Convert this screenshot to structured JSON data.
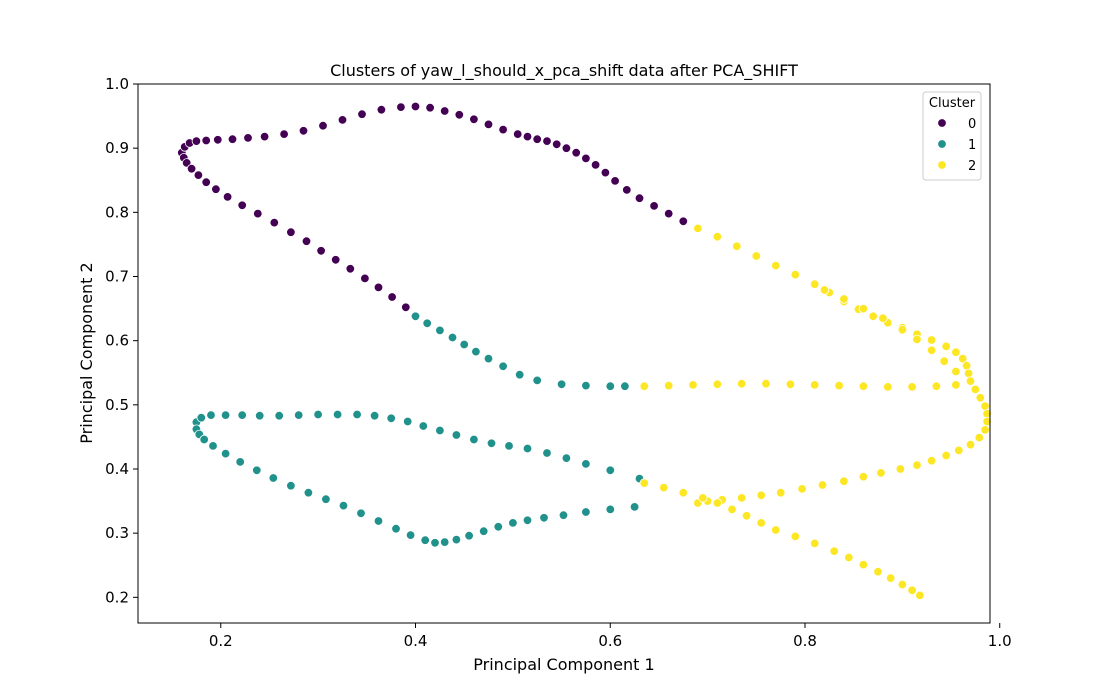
{
  "chart_data": {
    "type": "scatter",
    "title": "Clusters of yaw_l_should_x_pca_shift data after PCA_SHIFT",
    "xlabel": "Principal Component 1",
    "ylabel": "Principal Component 2",
    "xlim": [
      0.115,
      0.99
    ],
    "ylim": [
      0.16,
      1.0
    ],
    "xticks": [
      "0.2",
      "0.4",
      "0.6",
      "0.8",
      "1.0"
    ],
    "yticks": [
      "0.2",
      "0.3",
      "0.4",
      "0.5",
      "0.6",
      "0.7",
      "0.8",
      "0.9",
      "1.0"
    ],
    "grid": false,
    "legend": {
      "title": "Cluster",
      "placement": "top-right"
    },
    "series": [
      {
        "name": "0",
        "color": "#440154",
        "points": [
          [
            0.16,
            0.893
          ],
          [
            0.163,
            0.902
          ],
          [
            0.168,
            0.908
          ],
          [
            0.175,
            0.911
          ],
          [
            0.185,
            0.912
          ],
          [
            0.197,
            0.913
          ],
          [
            0.212,
            0.914
          ],
          [
            0.228,
            0.916
          ],
          [
            0.245,
            0.918
          ],
          [
            0.265,
            0.922
          ],
          [
            0.285,
            0.927
          ],
          [
            0.305,
            0.935
          ],
          [
            0.325,
            0.944
          ],
          [
            0.345,
            0.953
          ],
          [
            0.365,
            0.96
          ],
          [
            0.385,
            0.964
          ],
          [
            0.4,
            0.965
          ],
          [
            0.415,
            0.963
          ],
          [
            0.43,
            0.958
          ],
          [
            0.445,
            0.952
          ],
          [
            0.46,
            0.945
          ],
          [
            0.475,
            0.937
          ],
          [
            0.49,
            0.929
          ],
          [
            0.505,
            0.922
          ],
          [
            0.515,
            0.918
          ],
          [
            0.525,
            0.914
          ],
          [
            0.535,
            0.911
          ],
          [
            0.545,
            0.906
          ],
          [
            0.555,
            0.9
          ],
          [
            0.565,
            0.893
          ],
          [
            0.575,
            0.884
          ],
          [
            0.585,
            0.874
          ],
          [
            0.595,
            0.862
          ],
          [
            0.605,
            0.849
          ],
          [
            0.617,
            0.835
          ],
          [
            0.63,
            0.822
          ],
          [
            0.645,
            0.81
          ],
          [
            0.66,
            0.798
          ],
          [
            0.675,
            0.786
          ],
          [
            0.162,
            0.885
          ],
          [
            0.165,
            0.877
          ],
          [
            0.17,
            0.868
          ],
          [
            0.177,
            0.858
          ],
          [
            0.185,
            0.847
          ],
          [
            0.195,
            0.836
          ],
          [
            0.207,
            0.824
          ],
          [
            0.222,
            0.811
          ],
          [
            0.238,
            0.798
          ],
          [
            0.255,
            0.784
          ],
          [
            0.272,
            0.769
          ],
          [
            0.288,
            0.755
          ],
          [
            0.303,
            0.74
          ],
          [
            0.318,
            0.726
          ],
          [
            0.333,
            0.712
          ],
          [
            0.348,
            0.697
          ],
          [
            0.362,
            0.683
          ],
          [
            0.376,
            0.668
          ],
          [
            0.39,
            0.652
          ]
        ]
      },
      {
        "name": "1",
        "color": "#21918c",
        "points": [
          [
            0.4,
            0.638
          ],
          [
            0.412,
            0.627
          ],
          [
            0.425,
            0.616
          ],
          [
            0.438,
            0.605
          ],
          [
            0.45,
            0.594
          ],
          [
            0.462,
            0.583
          ],
          [
            0.475,
            0.572
          ],
          [
            0.49,
            0.56
          ],
          [
            0.507,
            0.547
          ],
          [
            0.525,
            0.538
          ],
          [
            0.55,
            0.532
          ],
          [
            0.575,
            0.53
          ],
          [
            0.6,
            0.529
          ],
          [
            0.615,
            0.529
          ],
          [
            0.175,
            0.473
          ],
          [
            0.18,
            0.48
          ],
          [
            0.19,
            0.484
          ],
          [
            0.205,
            0.484
          ],
          [
            0.222,
            0.484
          ],
          [
            0.24,
            0.483
          ],
          [
            0.26,
            0.483
          ],
          [
            0.28,
            0.484
          ],
          [
            0.3,
            0.485
          ],
          [
            0.32,
            0.485
          ],
          [
            0.34,
            0.485
          ],
          [
            0.358,
            0.483
          ],
          [
            0.375,
            0.479
          ],
          [
            0.392,
            0.474
          ],
          [
            0.408,
            0.467
          ],
          [
            0.425,
            0.46
          ],
          [
            0.442,
            0.453
          ],
          [
            0.46,
            0.446
          ],
          [
            0.478,
            0.44
          ],
          [
            0.496,
            0.436
          ],
          [
            0.515,
            0.432
          ],
          [
            0.535,
            0.425
          ],
          [
            0.555,
            0.417
          ],
          [
            0.575,
            0.408
          ],
          [
            0.6,
            0.398
          ],
          [
            0.63,
            0.385
          ],
          [
            0.175,
            0.462
          ],
          [
            0.178,
            0.454
          ],
          [
            0.183,
            0.446
          ],
          [
            0.192,
            0.436
          ],
          [
            0.205,
            0.424
          ],
          [
            0.22,
            0.411
          ],
          [
            0.237,
            0.398
          ],
          [
            0.254,
            0.386
          ],
          [
            0.272,
            0.374
          ],
          [
            0.29,
            0.363
          ],
          [
            0.308,
            0.353
          ],
          [
            0.326,
            0.343
          ],
          [
            0.344,
            0.331
          ],
          [
            0.362,
            0.319
          ],
          [
            0.38,
            0.307
          ],
          [
            0.395,
            0.297
          ],
          [
            0.41,
            0.289
          ],
          [
            0.42,
            0.285
          ],
          [
            0.43,
            0.286
          ],
          [
            0.442,
            0.29
          ],
          [
            0.455,
            0.296
          ],
          [
            0.47,
            0.303
          ],
          [
            0.485,
            0.31
          ],
          [
            0.5,
            0.316
          ],
          [
            0.515,
            0.32
          ],
          [
            0.532,
            0.324
          ],
          [
            0.552,
            0.328
          ],
          [
            0.575,
            0.333
          ],
          [
            0.6,
            0.337
          ],
          [
            0.625,
            0.341
          ]
        ]
      },
      {
        "name": "2",
        "color": "#fde725",
        "points": [
          [
            0.69,
            0.775
          ],
          [
            0.71,
            0.762
          ],
          [
            0.73,
            0.747
          ],
          [
            0.75,
            0.732
          ],
          [
            0.77,
            0.717
          ],
          [
            0.79,
            0.703
          ],
          [
            0.81,
            0.688
          ],
          [
            0.825,
            0.675
          ],
          [
            0.84,
            0.661
          ],
          [
            0.855,
            0.649
          ],
          [
            0.87,
            0.638
          ],
          [
            0.885,
            0.628
          ],
          [
            0.9,
            0.62
          ],
          [
            0.915,
            0.61
          ],
          [
            0.93,
            0.601
          ],
          [
            0.945,
            0.591
          ],
          [
            0.955,
            0.582
          ],
          [
            0.962,
            0.572
          ],
          [
            0.966,
            0.561
          ],
          [
            0.968,
            0.549
          ],
          [
            0.97,
            0.537
          ],
          [
            0.975,
            0.524
          ],
          [
            0.98,
            0.511
          ],
          [
            0.985,
            0.498
          ],
          [
            0.987,
            0.486
          ],
          [
            0.987,
            0.474
          ],
          [
            0.985,
            0.461
          ],
          [
            0.979,
            0.449
          ],
          [
            0.97,
            0.438
          ],
          [
            0.958,
            0.429
          ],
          [
            0.945,
            0.421
          ],
          [
            0.93,
            0.413
          ],
          [
            0.915,
            0.406
          ],
          [
            0.898,
            0.4
          ],
          [
            0.878,
            0.394
          ],
          [
            0.86,
            0.388
          ],
          [
            0.84,
            0.381
          ],
          [
            0.818,
            0.375
          ],
          [
            0.797,
            0.369
          ],
          [
            0.775,
            0.363
          ],
          [
            0.755,
            0.359
          ],
          [
            0.735,
            0.355
          ],
          [
            0.715,
            0.352
          ],
          [
            0.7,
            0.35
          ],
          [
            0.69,
            0.347
          ],
          [
            0.82,
            0.679
          ],
          [
            0.84,
            0.665
          ],
          [
            0.86,
            0.65
          ],
          [
            0.88,
            0.635
          ],
          [
            0.9,
            0.617
          ],
          [
            0.915,
            0.602
          ],
          [
            0.93,
            0.585
          ],
          [
            0.943,
            0.568
          ],
          [
            0.955,
            0.552
          ],
          [
            0.635,
            0.529
          ],
          [
            0.66,
            0.53
          ],
          [
            0.685,
            0.531
          ],
          [
            0.71,
            0.532
          ],
          [
            0.735,
            0.533
          ],
          [
            0.76,
            0.533
          ],
          [
            0.785,
            0.532
          ],
          [
            0.81,
            0.531
          ],
          [
            0.835,
            0.53
          ],
          [
            0.86,
            0.529
          ],
          [
            0.885,
            0.528
          ],
          [
            0.91,
            0.528
          ],
          [
            0.935,
            0.529
          ],
          [
            0.955,
            0.531
          ],
          [
            0.635,
            0.378
          ],
          [
            0.655,
            0.371
          ],
          [
            0.675,
            0.363
          ],
          [
            0.695,
            0.355
          ],
          [
            0.71,
            0.347
          ],
          [
            0.725,
            0.337
          ],
          [
            0.74,
            0.327
          ],
          [
            0.755,
            0.316
          ],
          [
            0.77,
            0.305
          ],
          [
            0.79,
            0.295
          ],
          [
            0.81,
            0.284
          ],
          [
            0.83,
            0.272
          ],
          [
            0.845,
            0.262
          ],
          [
            0.86,
            0.251
          ],
          [
            0.875,
            0.24
          ],
          [
            0.888,
            0.23
          ],
          [
            0.9,
            0.22
          ],
          [
            0.91,
            0.211
          ],
          [
            0.918,
            0.203
          ]
        ]
      }
    ]
  }
}
